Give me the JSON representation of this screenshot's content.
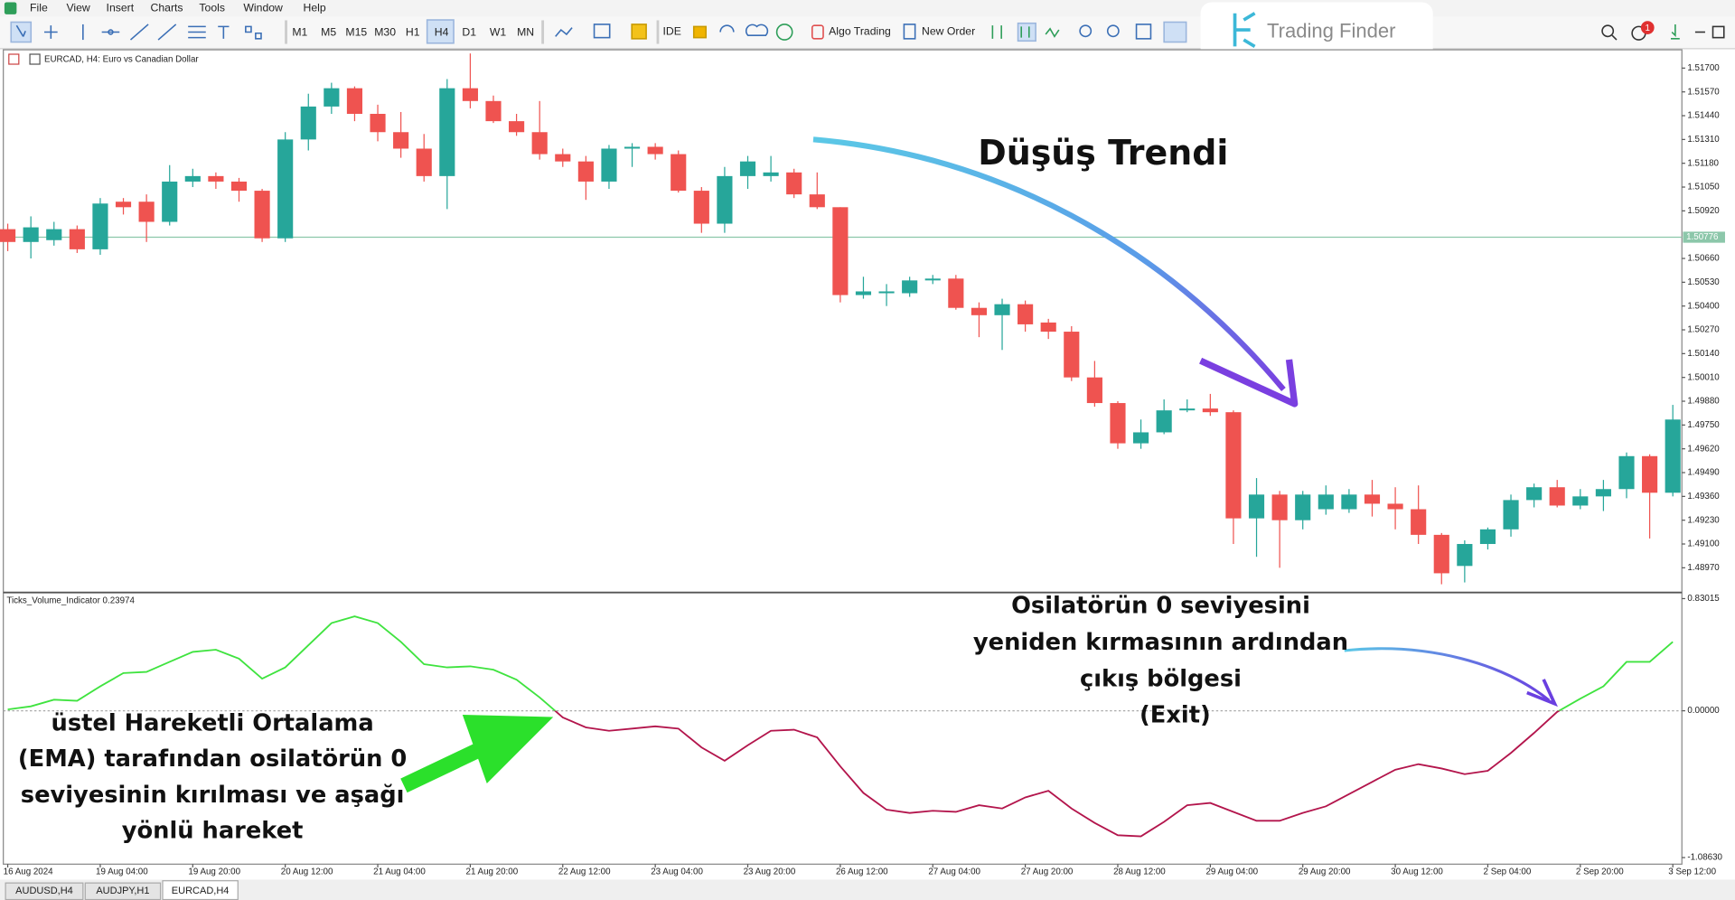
{
  "menu": [
    "File",
    "View",
    "Insert",
    "Charts",
    "Tools",
    "Window",
    "Help"
  ],
  "timeframes": [
    "M1",
    "M5",
    "M15",
    "M30",
    "H1",
    "H4",
    "D1",
    "W1",
    "MN"
  ],
  "toolbar": {
    "ide": "IDE",
    "algo_trading": "Algo Trading",
    "new_order": "New Order"
  },
  "logo": "Trading Finder",
  "notification_count": 1,
  "tabs": [
    "AUDUSD,H4",
    "AUDJPY,H1",
    "EURCAD,H4"
  ],
  "annotations": {
    "trend": "Düşüş Trendi",
    "entry": [
      "üstel Hareketli Ortalama",
      "(EMA) tarafından osilatörün 0",
      "seviyesinin kırılması ve aşağı",
      "yönlü hareket"
    ],
    "exit": [
      "Osilatörün 0 seviyesini",
      "yeniden kırmasının ardından",
      "çıkış bölgesi",
      "(Exit)"
    ]
  },
  "chart_data": [
    {
      "type": "candlestick",
      "title": "EURCAD, H4: Euro vs Canadian Dollar",
      "categories": [
        "16 Aug 2024",
        null,
        null,
        null,
        "19 Aug 04:00",
        null,
        null,
        null,
        "19 Aug 20:00",
        null,
        null,
        null,
        "20 Aug 12:00",
        null,
        null,
        null,
        "21 Aug 04:00",
        null,
        null,
        null,
        "21 Aug 20:00",
        null,
        null,
        null,
        "22 Aug 12:00",
        null,
        null,
        null,
        "23 Aug 04:00",
        null,
        null,
        null,
        "23 Aug 20:00",
        null,
        null,
        null,
        "26 Aug 12:00",
        null,
        null,
        null,
        "27 Aug 04:00",
        null,
        null,
        null,
        "27 Aug 20:00",
        null,
        null,
        null,
        "28 Aug 12:00",
        null,
        null,
        null,
        "29 Aug 04:00",
        null,
        null,
        null,
        "29 Aug 20:00",
        null,
        null,
        null,
        "30 Aug 12:00",
        null,
        null,
        null,
        "2 Sep 04:00",
        null,
        null,
        null,
        "2 Sep 20:00",
        null,
        null,
        null,
        "3 Sep 12:00"
      ],
      "open": [
        1.5082,
        1.5075,
        1.5076,
        1.5082,
        1.5071,
        1.5097,
        1.5097,
        1.5086,
        1.5108,
        1.5111,
        1.5108,
        1.5103,
        1.5077,
        1.5131,
        1.5149,
        1.5159,
        1.5145,
        1.5135,
        1.5126,
        1.5111,
        1.5159,
        1.5152,
        1.5141,
        1.5135,
        1.5123,
        1.5119,
        1.5108,
        1.5126,
        1.5127,
        1.5123,
        1.5103,
        1.5085,
        1.5111,
        1.5111,
        1.5113,
        1.5101,
        1.5094,
        1.5046,
        1.5047,
        1.5047,
        1.5054,
        1.5055,
        1.5039,
        1.5035,
        1.5041,
        1.5031,
        1.5026,
        1.5001,
        1.4987,
        1.4965,
        1.4971,
        1.4983,
        1.4984,
        1.4982,
        1.4924,
        1.4937,
        1.4923,
        1.4929,
        1.4929,
        1.4937,
        1.4932,
        1.4929,
        1.4915,
        1.4898,
        1.491,
        1.4918,
        1.4934,
        1.4941,
        1.4931,
        1.4936,
        1.494,
        1.4958,
        1.4938
      ],
      "high": [
        1.5085,
        1.5089,
        1.5086,
        1.5084,
        1.5099,
        1.5099,
        1.5101,
        1.5117,
        1.5115,
        1.5113,
        1.511,
        1.5104,
        1.5135,
        1.5156,
        1.5162,
        1.516,
        1.515,
        1.5146,
        1.5134,
        1.5164,
        1.5178,
        1.5155,
        1.5145,
        1.5152,
        1.5126,
        1.5122,
        1.5128,
        1.5129,
        1.5129,
        1.5125,
        1.5105,
        1.5116,
        1.5122,
        1.5122,
        1.5115,
        1.5113,
        1.5094,
        1.5056,
        1.5052,
        1.5056,
        1.5057,
        1.5057,
        1.5042,
        1.5044,
        1.5043,
        1.5033,
        1.5029,
        1.501,
        1.4988,
        1.4978,
        1.4989,
        1.4989,
        1.4992,
        1.4983,
        1.4946,
        1.4939,
        1.4939,
        1.4942,
        1.494,
        1.4945,
        1.4941,
        1.4942,
        1.4916,
        1.4912,
        1.4919,
        1.4937,
        1.4943,
        1.4945,
        1.494,
        1.4945,
        1.496,
        1.4959,
        1.4986
      ],
      "low": [
        1.507,
        1.5066,
        1.5073,
        1.5069,
        1.5068,
        1.509,
        1.5075,
        1.5084,
        1.5105,
        1.5104,
        1.5097,
        1.5075,
        1.5075,
        1.5125,
        1.5145,
        1.5141,
        1.513,
        1.5121,
        1.5108,
        1.5093,
        1.5148,
        1.514,
        1.5133,
        1.512,
        1.5116,
        1.5098,
        1.5104,
        1.5116,
        1.512,
        1.5102,
        1.508,
        1.508,
        1.5104,
        1.5108,
        1.5099,
        1.5093,
        1.5042,
        1.5044,
        1.504,
        1.5045,
        1.5052,
        1.5038,
        1.5023,
        1.5016,
        1.5026,
        1.5022,
        1.4999,
        1.4985,
        1.4962,
        1.4962,
        1.497,
        1.4982,
        1.498,
        1.491,
        1.4903,
        1.4897,
        1.4918,
        1.4926,
        1.4927,
        1.4925,
        1.4918,
        1.491,
        1.4888,
        1.4889,
        1.4907,
        1.4914,
        1.493,
        1.493,
        1.4929,
        1.4928,
        1.4935,
        1.4913,
        1.4936
      ],
      "close": [
        1.5075,
        1.5083,
        1.5082,
        1.5071,
        1.5096,
        1.5094,
        1.5086,
        1.5108,
        1.5111,
        1.5108,
        1.5103,
        1.5077,
        1.5131,
        1.5149,
        1.5159,
        1.5145,
        1.5135,
        1.5126,
        1.5111,
        1.5159,
        1.5152,
        1.5141,
        1.5135,
        1.5123,
        1.5119,
        1.5108,
        1.5126,
        1.5127,
        1.5123,
        1.5103,
        1.5085,
        1.5111,
        1.5119,
        1.5113,
        1.5101,
        1.5094,
        1.5046,
        1.5048,
        1.5048,
        1.5054,
        1.5055,
        1.5039,
        1.5035,
        1.5041,
        1.503,
        1.5026,
        1.5001,
        1.4987,
        1.4965,
        1.4971,
        1.4983,
        1.4984,
        1.4982,
        1.4924,
        1.4937,
        1.4923,
        1.4937,
        1.4937,
        1.4937,
        1.4932,
        1.4929,
        1.4915,
        1.4894,
        1.491,
        1.4918,
        1.4934,
        1.4941,
        1.4931,
        1.4936,
        1.494,
        1.4958,
        1.4938,
        1.4978
      ],
      "up_color": "#26a69a",
      "down_color": "#ef5350",
      "price_line": 1.50776,
      "price_line_color": "#8cc7aa",
      "ylim": [
        1.4885,
        1.518
      ],
      "yticks": [
        {
          "value": 1.517,
          "label": "1.51700"
        },
        {
          "value": 1.5157,
          "label": "1.51570"
        },
        {
          "value": 1.5144,
          "label": "1.51440"
        },
        {
          "value": 1.5131,
          "label": "1.51310"
        },
        {
          "value": 1.5118,
          "label": "1.51180"
        },
        {
          "value": 1.5105,
          "label": "1.51050"
        },
        {
          "value": 1.5092,
          "label": "1.50920"
        },
        {
          "value": 1.5066,
          "label": "1.50660"
        },
        {
          "value": 1.5053,
          "label": "1.50530"
        },
        {
          "value": 1.504,
          "label": "1.50400"
        },
        {
          "value": 1.5027,
          "label": "1.50270"
        },
        {
          "value": 1.5014,
          "label": "1.50140"
        },
        {
          "value": 1.5001,
          "label": "1.50010"
        },
        {
          "value": 1.4988,
          "label": "1.49880"
        },
        {
          "value": 1.4975,
          "label": "1.49750"
        },
        {
          "value": 1.4962,
          "label": "1.49620"
        },
        {
          "value": 1.4949,
          "label": "1.49490"
        },
        {
          "value": 1.4936,
          "label": "1.49360"
        },
        {
          "value": 1.4923,
          "label": "1.49230"
        },
        {
          "value": 1.491,
          "label": "1.49100"
        },
        {
          "value": 1.4897,
          "label": "1.48970"
        }
      ]
    },
    {
      "type": "line",
      "title": "Ticks_Volume_Indicator 0.23974",
      "values": [
        0.01,
        0.033,
        0.082,
        0.074,
        0.181,
        0.279,
        0.288,
        0.362,
        0.436,
        0.452,
        0.386,
        0.238,
        0.321,
        0.485,
        0.649,
        0.699,
        0.649,
        0.51,
        0.345,
        0.321,
        0.329,
        0.304,
        0.23,
        0.099,
        -0.049,
        -0.123,
        -0.148,
        -0.132,
        -0.115,
        -0.132,
        -0.271,
        -0.37,
        -0.255,
        -0.148,
        -0.14,
        -0.197,
        -0.411,
        -0.608,
        -0.732,
        -0.756,
        -0.74,
        -0.748,
        -0.699,
        -0.723,
        -0.641,
        -0.592,
        -0.723,
        -0.83,
        -0.921,
        -0.929,
        -0.822,
        -0.699,
        -0.682,
        -0.748,
        -0.814,
        -0.814,
        -0.756,
        -0.707,
        -0.617,
        -0.526,
        -0.436,
        -0.395,
        -0.427,
        -0.469,
        -0.444,
        -0.312,
        -0.164,
        -0.008,
        0.09,
        0.181,
        0.362,
        0.362,
        0.51
      ],
      "positive_color": "#3fe33f",
      "negative_color": "#b3154c",
      "ylim": [
        -1.135,
        0.863
      ],
      "yticks": [
        0.83015,
        {
          "value": 0,
          "label": "0.00000"
        },
        {
          "value": -1.0863,
          "label": "-1.08630"
        }
      ]
    }
  ]
}
